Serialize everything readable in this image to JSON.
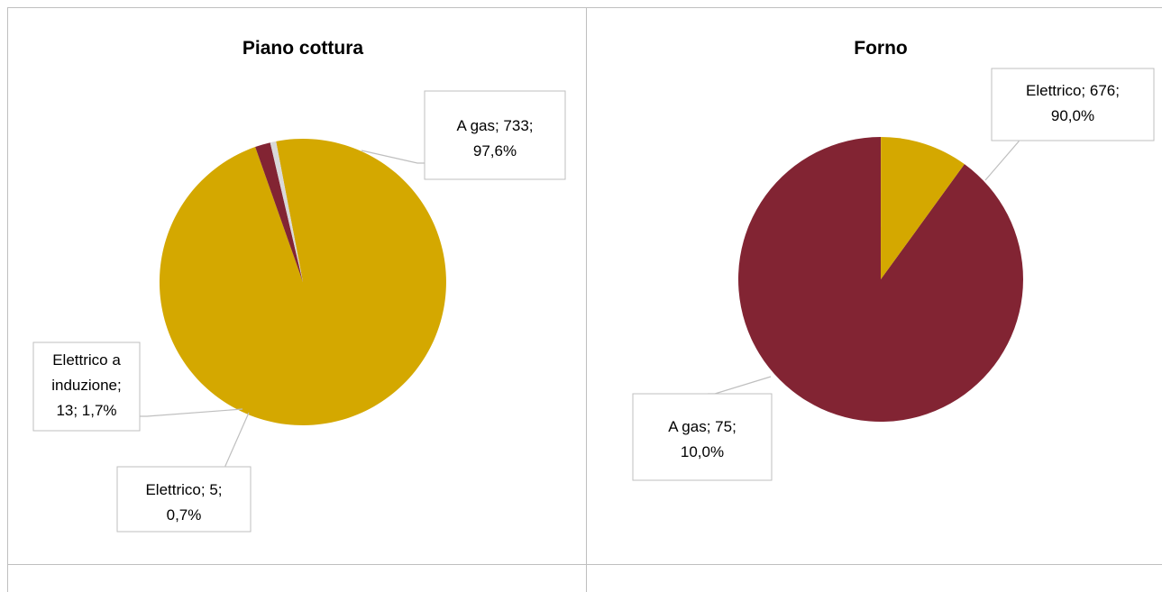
{
  "chart_data": [
    {
      "type": "pie",
      "title": "Piano cottura",
      "slices": [
        {
          "name": "A gas",
          "value": 733,
          "percent": "97,6%",
          "color": "#D4A800",
          "label_lines": [
            "A gas; 733;",
            "97,6%"
          ]
        },
        {
          "name": "Elettrico a induzione",
          "value": 13,
          "percent": "1,7%",
          "color": "#822433",
          "label_lines": [
            "Elettrico a",
            "induzione;",
            "13; 1,7%"
          ]
        },
        {
          "name": "Elettrico",
          "value": 5,
          "percent": "0,7%",
          "color": "#D9D9D9",
          "label_lines": [
            "Elettrico; 5;",
            "0,7%"
          ]
        }
      ]
    },
    {
      "type": "pie",
      "title": "Forno",
      "slices": [
        {
          "name": "Elettrico",
          "value": 676,
          "percent": "90,0%",
          "color": "#822433",
          "label_lines": [
            "Elettrico; 676;",
            "90,0%"
          ]
        },
        {
          "name": "A gas",
          "value": 75,
          "percent": "10,0%",
          "color": "#D4A800",
          "label_lines": [
            "A gas; 75;",
            "10,0%"
          ]
        }
      ]
    }
  ]
}
